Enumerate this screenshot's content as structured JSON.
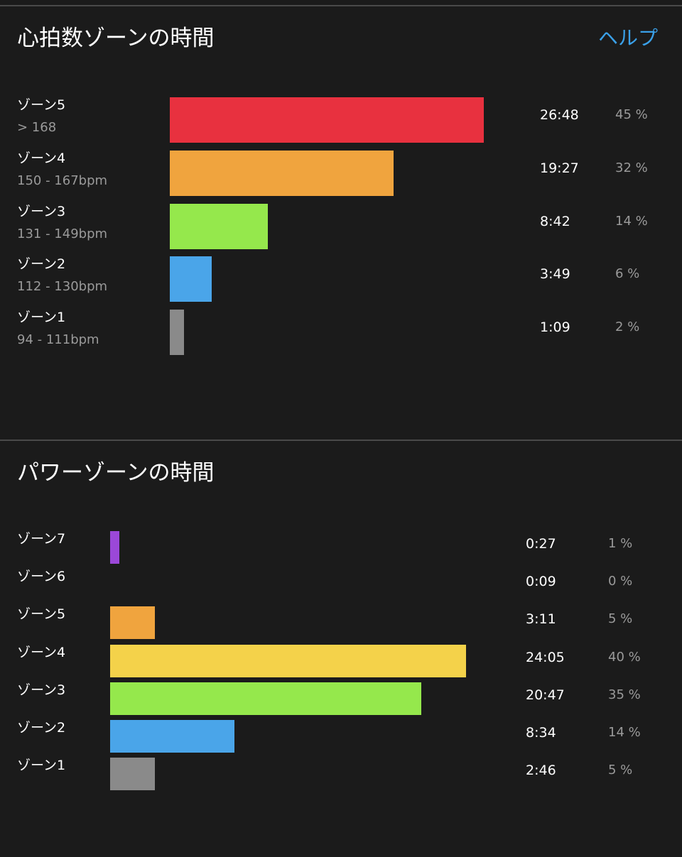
{
  "colors": {
    "background": "#1b1b1b",
    "help_link": "#3aa0e8",
    "divider": "#4a4a4a"
  },
  "chart_data": [
    {
      "type": "bar",
      "orientation": "horizontal",
      "title": "心拍数ゾーンの時間",
      "help_label": "ヘルプ",
      "categories": [
        "ゾーン5",
        "ゾーン4",
        "ゾーン3",
        "ゾーン2",
        "ゾーン1"
      ],
      "ranges": [
        "> 168",
        "150 - 167bpm",
        "131 - 149bpm",
        "112 - 130bpm",
        "94 - 111bpm"
      ],
      "times": [
        "26:48",
        "19:27",
        "8:42",
        "3:49",
        "1:09"
      ],
      "percent_labels": [
        "45 %",
        "32 %",
        "14 %",
        "6 %",
        "2 %"
      ],
      "values": [
        45,
        32,
        14,
        6,
        2
      ],
      "colors": [
        "#e8313f",
        "#f0a43e",
        "#95e84c",
        "#4aa5e9",
        "#8a8a8a"
      ]
    },
    {
      "type": "bar",
      "orientation": "horizontal",
      "title": "パワーゾーンの時間",
      "categories": [
        "ゾーン7",
        "ゾーン6",
        "ゾーン5",
        "ゾーン4",
        "ゾーン3",
        "ゾーン2",
        "ゾーン1"
      ],
      "times": [
        "0:27",
        "0:09",
        "3:11",
        "24:05",
        "20:47",
        "8:34",
        "2:46"
      ],
      "percent_labels": [
        "1 %",
        "0 %",
        "5 %",
        "40 %",
        "35 %",
        "14 %",
        "5 %"
      ],
      "values": [
        1,
        0,
        5,
        40,
        35,
        14,
        5
      ],
      "colors": [
        "#9b48d8",
        "#9b48d8",
        "#f0a43e",
        "#f4d24a",
        "#95e84c",
        "#4aa5e9",
        "#8a8a8a"
      ]
    }
  ]
}
